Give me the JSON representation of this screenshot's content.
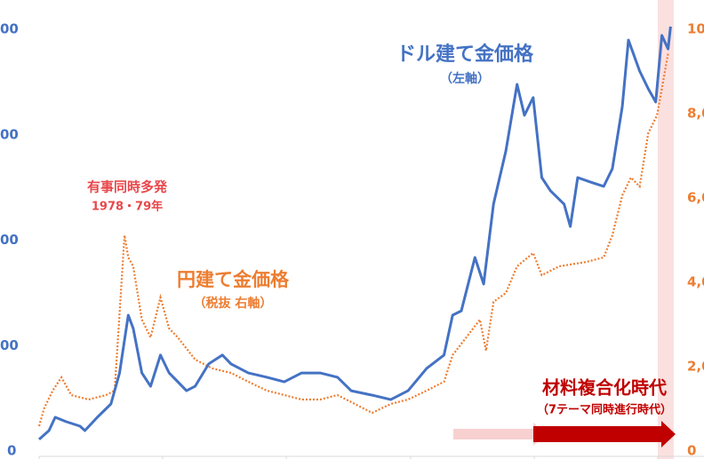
{
  "chart_data": {
    "type": "line",
    "x": [
      1973.0,
      1973.8,
      1974.3,
      1975.2,
      1976.3,
      1976.7,
      1977.7,
      1978.8,
      1979.5,
      1980.2,
      1980.6,
      1981.3,
      1982.0,
      1982.8,
      1983.5,
      1984.9,
      1985.6,
      1986.7,
      1987.8,
      1988.5,
      1989.9,
      1991.4,
      1992.8,
      1994.2,
      1995.7,
      1997.1,
      1998.2,
      1999.9,
      2001.4,
      2002.8,
      2004.3,
      2005.7,
      2006.4,
      2007.1,
      2008.2,
      2008.9,
      2009.7,
      2010.7,
      2011.6,
      2012.2,
      2012.9,
      2013.6,
      2014.3,
      2015.4,
      2015.9,
      2016.5,
      2017.5,
      2018.6,
      2019.3,
      2020.1,
      2020.6,
      2021.5,
      2022.2,
      2022.8,
      2023.3,
      2023.8,
      2024.0
    ],
    "series": [
      {
        "name": "ドル建て金価格",
        "color": "#4472c4",
        "values": [
          55,
          97,
          160,
          139,
          118,
          97,
          160,
          223,
          370,
          644,
          581,
          370,
          307,
          455,
          370,
          286,
          307,
          413,
          455,
          413,
          370,
          350,
          328,
          370,
          370,
          350,
          286,
          265,
          244,
          286,
          392,
          455,
          644,
          665,
          918,
          792,
          1171,
          1423,
          1739,
          1592,
          1676,
          1297,
          1234,
          1171,
          1065,
          1297,
          1276,
          1255,
          1339,
          1634,
          1949,
          1802,
          1718,
          1655,
          1971,
          1907,
          2013
        ]
      }
    ],
    "x2": [
      1973.0,
      1973.4,
      1974.1,
      1974.8,
      1975.6,
      1977.0,
      1978.4,
      1979.1,
      1979.9,
      1980.2,
      1980.6,
      1981.3,
      1982.0,
      1982.8,
      1983.5,
      1984.2,
      1985.6,
      1987.0,
      1988.5,
      1989.9,
      1991.4,
      1992.8,
      1994.2,
      1995.7,
      1997.1,
      1998.5,
      1999.9,
      2001.4,
      2002.8,
      2004.3,
      2005.7,
      2006.4,
      2007.5,
      2008.6,
      2009.1,
      2009.7,
      2010.7,
      2011.6,
      2012.9,
      2013.6,
      2015.0,
      2017.2,
      2018.6,
      2019.3,
      2020.1,
      2020.8,
      2021.5,
      2022.2,
      2022.9,
      2023.3,
      2023.8
    ],
    "series2": {
      "name": "円建て金価格",
      "color": "#ed7d31",
      "axis": "y2",
      "values": [
        590,
        1011,
        1432,
        1747,
        1326,
        1221,
        1326,
        1432,
        5116,
        4590,
        4379,
        3116,
        2695,
        3642,
        2905,
        2695,
        2168,
        1958,
        1853,
        1642,
        1432,
        1326,
        1221,
        1221,
        1326,
        1116,
        905,
        1116,
        1221,
        1432,
        1642,
        2274,
        2695,
        3116,
        2379,
        3537,
        3747,
        4379,
        4695,
        4168,
        4379,
        4484,
        4590,
        5116,
        6063,
        6484,
        6274,
        7537,
        7958,
        8590,
        9432
      ]
    },
    "xlim": [
      1973,
      2026.7
    ],
    "ylim": [
      0,
      2000
    ],
    "yticks": [
      0,
      {
        "value": 500,
        "label": "00"
      },
      {
        "value": 1000,
        "label": "00"
      },
      {
        "value": 1500,
        "label": "00"
      },
      {
        "value": 2000,
        "label": "00"
      }
    ],
    "y2lim": [
      0,
      10000
    ],
    "y2ticks": [
      0,
      {
        "value": 2000,
        "label": "2,0"
      },
      {
        "value": 4000,
        "label": "4,0"
      },
      {
        "value": 6000,
        "label": "6,0"
      },
      {
        "value": 8000,
        "label": "8,0"
      },
      {
        "value": 10000,
        "label": "10"
      }
    ],
    "annotations": {
      "usd_title": "ドル建て金価格",
      "usd_sub": "（左軸）",
      "jpy_title": "円建て金価格",
      "jpy_sub": "（税抜 右軸）",
      "crisis_title": "有事同時多発",
      "crisis_sub": "1978・79年",
      "era_title": "材料複合化時代",
      "era_sub": "（7テーマ同時進行時代）"
    }
  }
}
